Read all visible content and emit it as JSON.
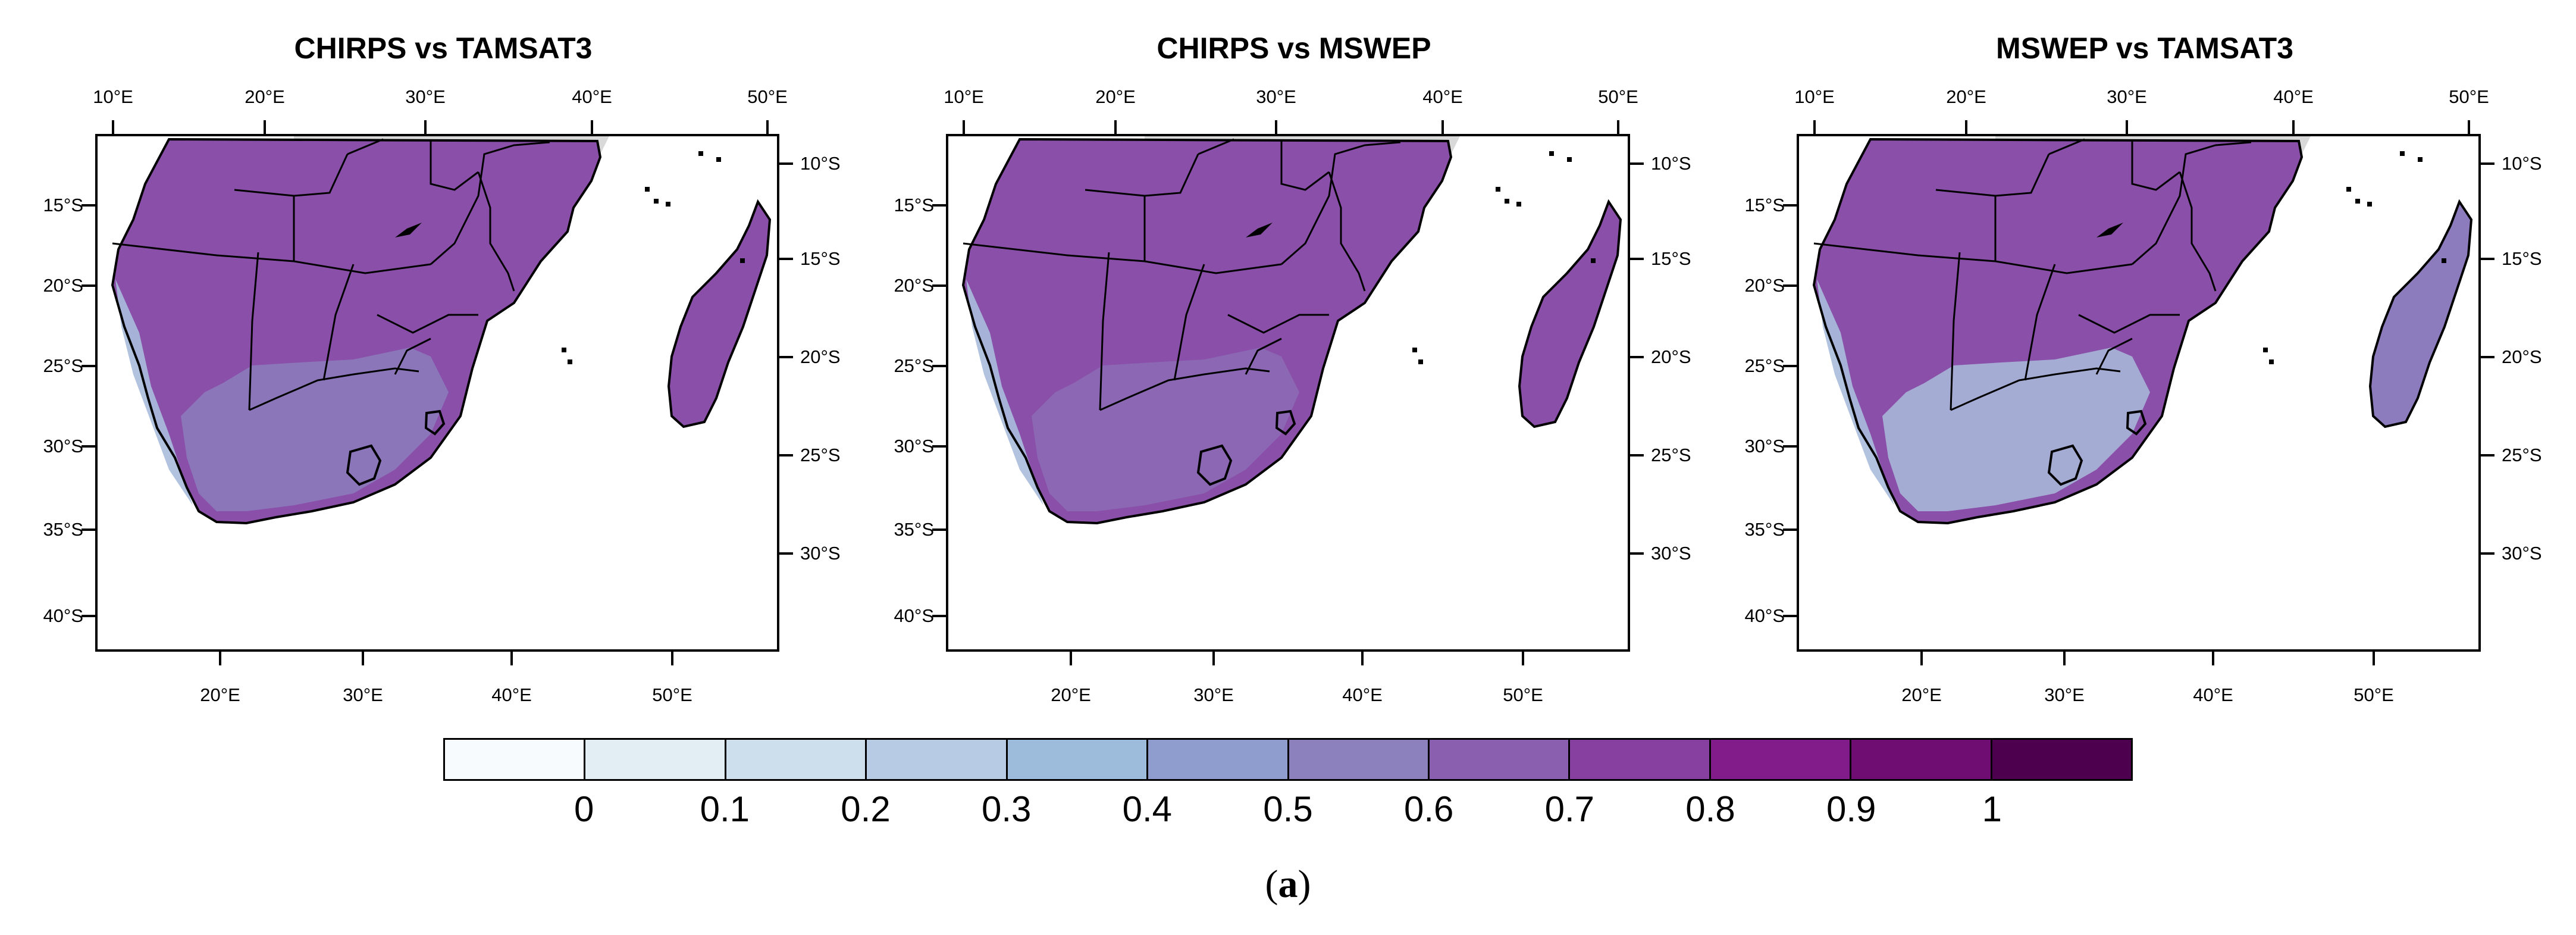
{
  "figure": {
    "caption_open": "(",
    "caption_letter": "a",
    "caption_close": ")"
  },
  "panels": [
    {
      "title": "CHIRPS vs TAMSAT3"
    },
    {
      "title": "CHIRPS vs MSWEP"
    },
    {
      "title": "MSWEP vs TAMSAT3"
    }
  ],
  "axes": {
    "top_ticks": [
      "10°E",
      "20°E",
      "30°E",
      "40°E",
      "50°E"
    ],
    "bottom_ticks": [
      "20°E",
      "30°E",
      "40°E",
      "50°E"
    ],
    "left_ticks": [
      "15°S",
      "20°S",
      "25°S",
      "30°S",
      "35°S",
      "40°S"
    ],
    "right_ticks": [
      "10°S",
      "15°S",
      "20°S",
      "25°S",
      "30°S"
    ]
  },
  "colorbar": {
    "labels": [
      "0",
      "0.1",
      "0.2",
      "0.3",
      "0.4",
      "0.5",
      "0.6",
      "0.7",
      "0.8",
      "0.9",
      "1"
    ],
    "colors": [
      "#f7fbfd",
      "#e3edf4",
      "#cddfec",
      "#b7cce4",
      "#9dbcdb",
      "#8e9cce",
      "#8c80bd",
      "#8a5fb0",
      "#87409f",
      "#811c8a",
      "#700d72",
      "#4c004d"
    ]
  },
  "map_colors": {
    "land_high": "#8a4fa8",
    "land_mid": "#8c7cbd",
    "land_low": "#a9bcdc",
    "masked": "#d9d9d9"
  }
}
